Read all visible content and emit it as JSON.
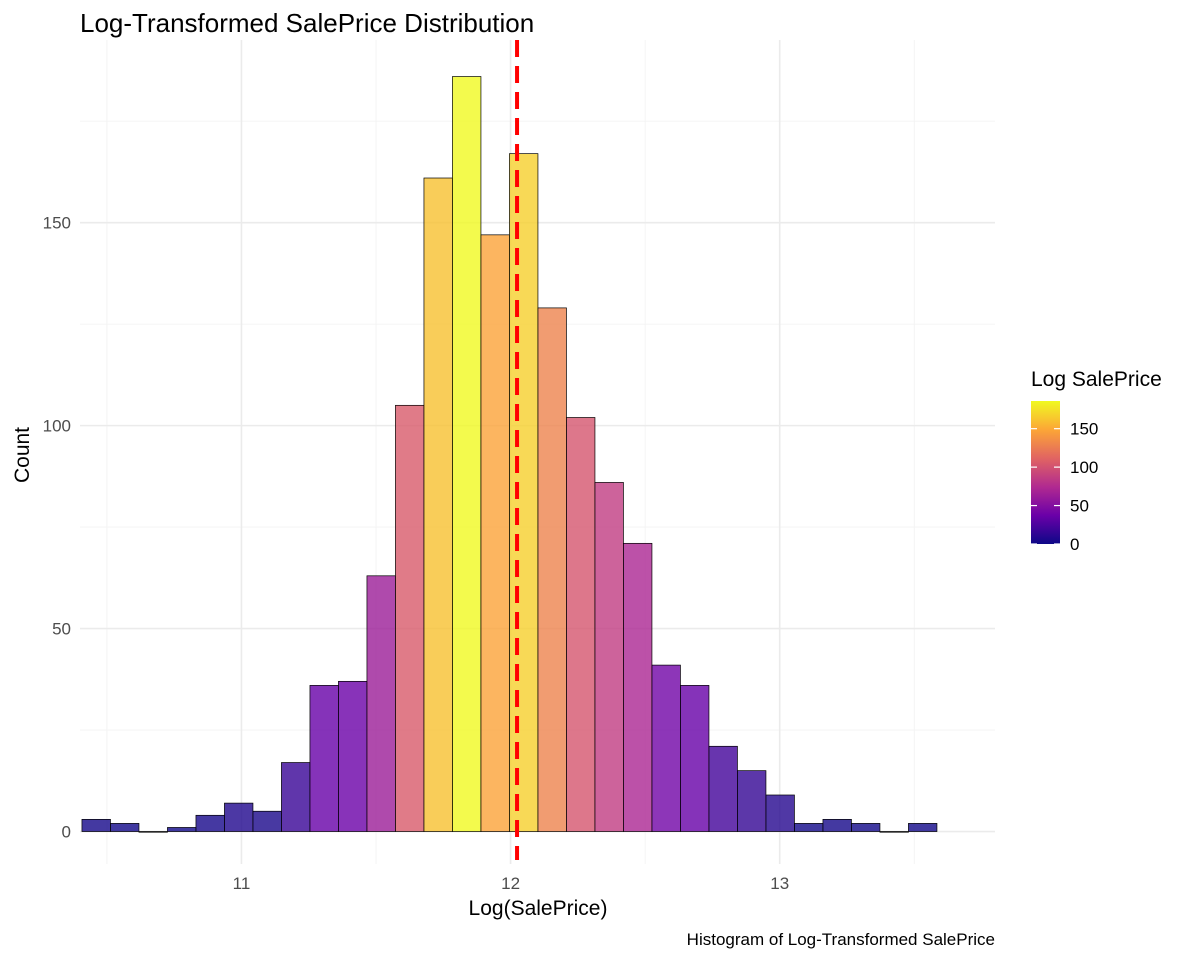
{
  "chart_data": {
    "type": "bar",
    "title": "Log-Transformed SalePrice Distribution",
    "xlabel": "Log(SalePrice)",
    "ylabel": "Count",
    "caption": "Histogram of Log-Transformed SalePrice",
    "xlim": [
      10.4,
      13.8
    ],
    "ylim": [
      -8,
      195
    ],
    "x_ticks": [
      11,
      12,
      13
    ],
    "y_ticks": [
      0,
      50,
      100,
      150
    ],
    "grid": true,
    "bin_width": 0.1059,
    "bins": [
      {
        "x": 10.4602,
        "count": 3
      },
      {
        "x": 10.5661,
        "count": 2
      },
      {
        "x": 10.672,
        "count": 0
      },
      {
        "x": 10.7779,
        "count": 1
      },
      {
        "x": 10.8838,
        "count": 4
      },
      {
        "x": 10.9897,
        "count": 7
      },
      {
        "x": 11.0956,
        "count": 5
      },
      {
        "x": 11.2015,
        "count": 17
      },
      {
        "x": 11.3074,
        "count": 36
      },
      {
        "x": 11.4133,
        "count": 37
      },
      {
        "x": 11.5192,
        "count": 63
      },
      {
        "x": 11.6251,
        "count": 105
      },
      {
        "x": 11.731,
        "count": 161
      },
      {
        "x": 11.8369,
        "count": 186
      },
      {
        "x": 11.9428,
        "count": 147
      },
      {
        "x": 12.0487,
        "count": 167
      },
      {
        "x": 12.1546,
        "count": 129
      },
      {
        "x": 12.2605,
        "count": 102
      },
      {
        "x": 12.3664,
        "count": 86
      },
      {
        "x": 12.4723,
        "count": 71
      },
      {
        "x": 12.5782,
        "count": 41
      },
      {
        "x": 12.6841,
        "count": 36
      },
      {
        "x": 12.79,
        "count": 21
      },
      {
        "x": 12.8959,
        "count": 15
      },
      {
        "x": 13.0018,
        "count": 9
      },
      {
        "x": 13.1077,
        "count": 2
      },
      {
        "x": 13.2136,
        "count": 3
      },
      {
        "x": 13.3195,
        "count": 2
      },
      {
        "x": 13.4254,
        "count": 0
      },
      {
        "x": 13.5313,
        "count": 2
      }
    ],
    "mean_line": {
      "x": 12.024,
      "color": "#ff0000",
      "style": "dashed"
    },
    "legend": {
      "title": "Log SalePrice",
      "position": "right",
      "ticks": [
        0,
        50,
        100,
        150
      ],
      "range": [
        0,
        186
      ],
      "colors": [
        "#0d0887",
        "#6a00a8",
        "#b12a90",
        "#e16462",
        "#fca636",
        "#f0f921"
      ]
    }
  }
}
